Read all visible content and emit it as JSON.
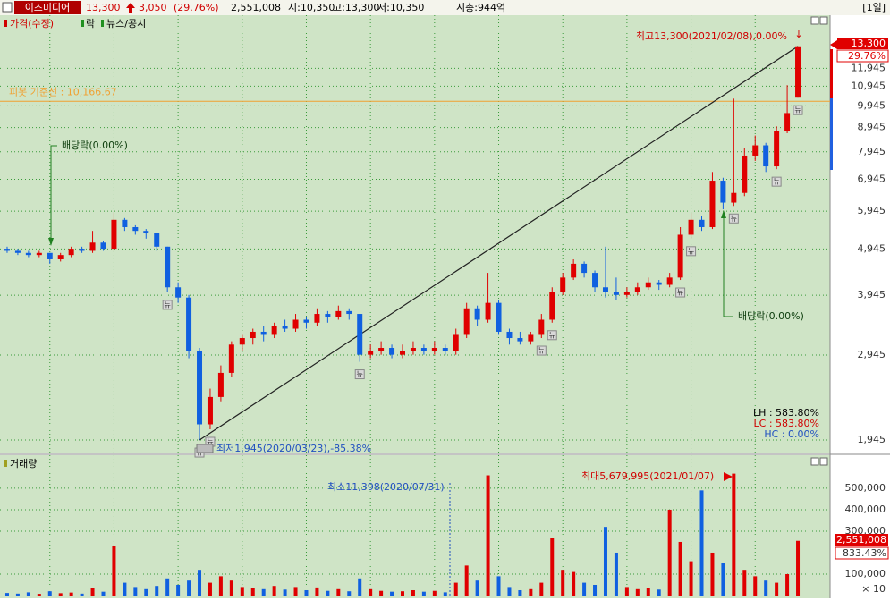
{
  "header": {
    "stock_name": "이즈미디어",
    "price": "13,300",
    "change": "3,050",
    "change_pct": "(29.76%)",
    "volume": "2,551,008",
    "open": "시:10,350",
    "high": "고:13,300",
    "low": "저:10,350",
    "market_cap": "시총:944억",
    "period": "[1일]"
  },
  "price_chart": {
    "legend": [
      "가격(수정)",
      "락",
      "뉴스/공시"
    ],
    "log_scale": true,
    "ylim": [
      1822,
      15480
    ],
    "yticks": [
      {
        "value": 1945,
        "label": "1,945"
      },
      {
        "value": 2945,
        "label": "2,945"
      },
      {
        "value": 3945,
        "label": "3,945"
      },
      {
        "value": 4945,
        "label": "4,945"
      },
      {
        "value": 5945,
        "label": "5,945"
      },
      {
        "value": 6945,
        "label": "6,945"
      },
      {
        "value": 7945,
        "label": "7,945"
      },
      {
        "value": 8945,
        "label": "8,945"
      },
      {
        "value": 9945,
        "label": "9,945"
      },
      {
        "value": 10945,
        "label": "10,945"
      },
      {
        "value": 11945,
        "label": "11,945"
      }
    ],
    "up_color": "#e00000",
    "down_color": "#1060e0",
    "candles": [
      [
        4950,
        5000,
        4850,
        4900
      ],
      [
        4900,
        4950,
        4800,
        4850
      ],
      [
        4850,
        4900,
        4750,
        4800
      ],
      [
        4800,
        4900,
        4750,
        4850
      ],
      [
        4850,
        4850,
        4600,
        4700
      ],
      [
        4700,
        4850,
        4650,
        4800
      ],
      [
        4800,
        5000,
        4750,
        4950
      ],
      [
        4950,
        5000,
        4850,
        4900
      ],
      [
        4900,
        5400,
        4850,
        5100
      ],
      [
        5100,
        5150,
        4900,
        4950
      ],
      [
        4950,
        5900,
        4900,
        5700
      ],
      [
        5700,
        5750,
        5400,
        5500
      ],
      [
        5500,
        5550,
        5300,
        5400
      ],
      [
        5400,
        5450,
        5200,
        5350
      ],
      [
        5350,
        5350,
        4900,
        5000
      ],
      [
        5000,
        5000,
        4000,
        4100
      ],
      [
        4100,
        4200,
        3800,
        3900
      ],
      [
        3900,
        3950,
        2900,
        3000
      ],
      [
        3000,
        3050,
        1945,
        2100
      ],
      [
        2100,
        2500,
        2050,
        2400
      ],
      [
        2400,
        2800,
        2350,
        2700
      ],
      [
        2700,
        3150,
        2650,
        3100
      ],
      [
        3100,
        3250,
        3000,
        3200
      ],
      [
        3200,
        3350,
        3100,
        3300
      ],
      [
        3300,
        3400,
        3150,
        3250
      ],
      [
        3250,
        3450,
        3200,
        3400
      ],
      [
        3400,
        3500,
        3300,
        3350
      ],
      [
        3350,
        3600,
        3300,
        3500
      ],
      [
        3500,
        3550,
        3350,
        3450
      ],
      [
        3450,
        3700,
        3400,
        3600
      ],
      [
        3600,
        3650,
        3450,
        3550
      ],
      [
        3550,
        3750,
        3500,
        3650
      ],
      [
        3650,
        3700,
        3500,
        3600
      ],
      [
        3600,
        3600,
        2850,
        2950
      ],
      [
        2950,
        3100,
        2900,
        3000
      ],
      [
        3000,
        3150,
        2950,
        3050
      ],
      [
        3050,
        3100,
        2900,
        2950
      ],
      [
        2950,
        3100,
        2900,
        3000
      ],
      [
        3000,
        3150,
        2950,
        3050
      ],
      [
        3050,
        3100,
        2950,
        3000
      ],
      [
        3000,
        3150,
        2950,
        3050
      ],
      [
        3050,
        3100,
        2950,
        3000
      ],
      [
        3000,
        3350,
        2950,
        3250
      ],
      [
        3250,
        3800,
        3200,
        3700
      ],
      [
        3700,
        3750,
        3400,
        3500
      ],
      [
        3500,
        4400,
        3450,
        3800
      ],
      [
        3800,
        3850,
        3250,
        3300
      ],
      [
        3300,
        3350,
        3100,
        3200
      ],
      [
        3200,
        3300,
        3100,
        3150
      ],
      [
        3150,
        3300,
        3100,
        3250
      ],
      [
        3250,
        3600,
        3200,
        3500
      ],
      [
        3500,
        4100,
        3450,
        4000
      ],
      [
        4000,
        4400,
        3950,
        4300
      ],
      [
        4300,
        4700,
        4250,
        4600
      ],
      [
        4600,
        4650,
        4300,
        4400
      ],
      [
        4400,
        4450,
        4000,
        4100
      ],
      [
        4100,
        5000,
        3900,
        4000
      ],
      [
        4000,
        4300,
        3850,
        3950
      ],
      [
        3950,
        4100,
        3900,
        4000
      ],
      [
        4000,
        4200,
        3950,
        4100
      ],
      [
        4100,
        4300,
        4050,
        4200
      ],
      [
        4200,
        4250,
        4050,
        4150
      ],
      [
        4150,
        4400,
        4100,
        4300
      ],
      [
        4300,
        5500,
        4250,
        5300
      ],
      [
        5300,
        5900,
        5200,
        5700
      ],
      [
        5700,
        5800,
        5400,
        5500
      ],
      [
        5500,
        7200,
        5450,
        6900
      ],
      [
        6900,
        7000,
        6000,
        6200
      ],
      [
        6200,
        10300,
        6100,
        6500
      ],
      [
        6500,
        8100,
        6400,
        7800
      ],
      [
        7800,
        8600,
        7600,
        8200
      ],
      [
        8200,
        8300,
        7200,
        7400
      ],
      [
        7400,
        9000,
        7300,
        8800
      ],
      [
        8800,
        11000,
        8700,
        9600
      ],
      [
        10350,
        13300,
        10350,
        13300
      ]
    ],
    "pivot": {
      "value": 10166.67,
      "label": "피봇 기준선 : 10,166.67",
      "color": "#f0a030"
    },
    "dividend_labels": [
      "배당락(0.00%)",
      "배당락(0.00%)"
    ],
    "news_icon": "뉴",
    "high_label": "최고13,300(2021/02/08),0.00%",
    "high_arrow": "↓",
    "low_label": "최저1,945(2020/03/23),-85.38%",
    "stats": [
      "LH : 583.80%",
      "LC : 583.80%",
      "HC : 0.00%"
    ],
    "price_tag": "13,300",
    "pct_tag": "29.76%"
  },
  "volume_chart": {
    "title": "거래량",
    "ylim": [
      0,
      633000
    ],
    "yticks": [
      {
        "value": 100000,
        "label": "100,000"
      },
      {
        "value": 300000,
        "label": "300,000"
      },
      {
        "value": 400000,
        "label": "400,000"
      },
      {
        "value": 500000,
        "label": "500,000"
      }
    ],
    "multiplier": "× 10",
    "values": [
      12000,
      9000,
      15000,
      8000,
      20000,
      11000,
      14000,
      9000,
      35000,
      18000,
      230000,
      60000,
      40000,
      30000,
      45000,
      80000,
      50000,
      70000,
      120000,
      60000,
      90000,
      70000,
      40000,
      35000,
      30000,
      45000,
      28000,
      40000,
      25000,
      38000,
      22000,
      30000,
      20000,
      80000,
      30000,
      22000,
      18000,
      20000,
      25000,
      18000,
      22000,
      15000,
      60000,
      140000,
      70000,
      560000,
      90000,
      40000,
      25000,
      30000,
      60000,
      270000,
      120000,
      110000,
      60000,
      50000,
      320000,
      200000,
      40000,
      30000,
      35000,
      28000,
      400000,
      250000,
      160000,
      490000,
      200000,
      150000,
      568000,
      120000,
      90000,
      70000,
      60000,
      100000,
      255100
    ],
    "min_label": "최소11,398(2020/07/31)",
    "max_label": "최대5,679,995(2021/01/07)",
    "volume_tag": "2,551,008",
    "ratio_tag": "833.43%"
  }
}
